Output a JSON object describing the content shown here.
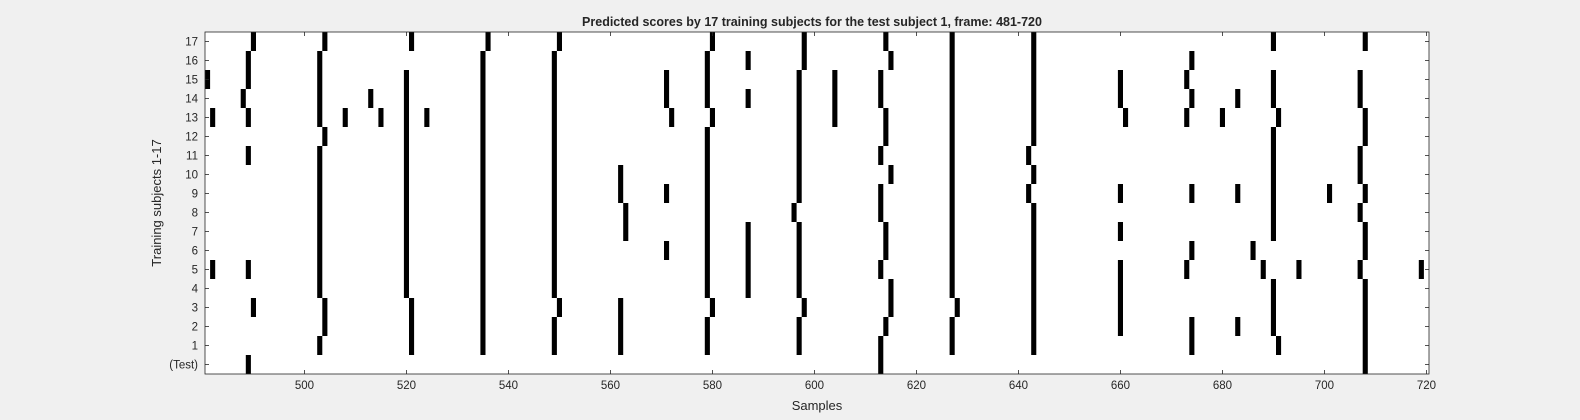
{
  "chart_data": {
    "type": "heatmap",
    "title": "Predicted scores by 17 training subjects for the test subject 1, frame: 481-720",
    "xlabel": "Samples",
    "ylabel": "Training subjects 1-17",
    "xlim": [
      481,
      720
    ],
    "x_ticks": [
      500,
      520,
      540,
      560,
      580,
      600,
      620,
      640,
      660,
      680,
      700,
      720
    ],
    "y_tick_labels": [
      "(Test)",
      "1",
      "2",
      "3",
      "4",
      "5",
      "6",
      "7",
      "8",
      "9",
      "10",
      "11",
      "12",
      "13",
      "14",
      "15",
      "16",
      "17"
    ],
    "grid": false,
    "rows": [
      {
        "label": "17",
        "x": [
          490,
          504,
          521,
          536,
          550,
          580,
          598,
          614,
          627,
          643,
          690,
          708
        ]
      },
      {
        "label": "16",
        "x": [
          489,
          503,
          535,
          549,
          579,
          587,
          598,
          615,
          627,
          643,
          674
        ]
      },
      {
        "label": "15",
        "x": [
          481,
          489,
          503,
          520,
          535,
          549,
          571,
          579,
          597,
          604,
          613,
          627,
          643,
          660,
          673,
          690,
          707
        ]
      },
      {
        "label": "14",
        "x": [
          488,
          503,
          513,
          520,
          535,
          549,
          571,
          579,
          587,
          597,
          604,
          613,
          627,
          643,
          660,
          674,
          683,
          690,
          707
        ]
      },
      {
        "label": "13",
        "x": [
          482,
          489,
          503,
          508,
          515,
          520,
          524,
          535,
          549,
          572,
          580,
          597,
          604,
          614,
          627,
          643,
          661,
          673,
          680,
          691,
          708
        ]
      },
      {
        "label": "12",
        "x": [
          504,
          520,
          535,
          549,
          579,
          597,
          614,
          627,
          643,
          690,
          708
        ]
      },
      {
        "label": "11",
        "x": [
          489,
          503,
          520,
          535,
          549,
          579,
          597,
          613,
          627,
          642,
          690,
          707
        ]
      },
      {
        "label": "10",
        "x": [
          503,
          520,
          535,
          549,
          562,
          579,
          597,
          615,
          627,
          643,
          690,
          707
        ]
      },
      {
        "label": "9",
        "x": [
          503,
          520,
          535,
          549,
          562,
          571,
          579,
          597,
          613,
          627,
          642,
          660,
          674,
          683,
          690,
          701,
          708
        ]
      },
      {
        "label": "8",
        "x": [
          503,
          520,
          535,
          549,
          563,
          579,
          596,
          613,
          627,
          643,
          690,
          707
        ]
      },
      {
        "label": "7",
        "x": [
          503,
          520,
          535,
          549,
          563,
          579,
          587,
          597,
          614,
          627,
          643,
          660,
          690,
          708
        ]
      },
      {
        "label": "6",
        "x": [
          503,
          520,
          535,
          549,
          571,
          579,
          587,
          597,
          614,
          627,
          643,
          674,
          686,
          708
        ]
      },
      {
        "label": "5",
        "x": [
          482,
          489,
          503,
          520,
          535,
          549,
          579,
          587,
          597,
          613,
          627,
          643,
          660,
          673,
          688,
          695,
          707,
          719
        ]
      },
      {
        "label": "4",
        "x": [
          503,
          520,
          535,
          549,
          579,
          587,
          597,
          615,
          627,
          643,
          660,
          690,
          708
        ]
      },
      {
        "label": "3",
        "x": [
          490,
          504,
          521,
          535,
          550,
          562,
          580,
          598,
          615,
          628,
          643,
          660,
          690,
          708
        ]
      },
      {
        "label": "2",
        "x": [
          504,
          521,
          535,
          549,
          562,
          579,
          597,
          614,
          627,
          643,
          660,
          674,
          683,
          690,
          708
        ]
      },
      {
        "label": "1",
        "x": [
          503,
          521,
          535,
          549,
          562,
          579,
          597,
          613,
          627,
          643,
          674,
          691,
          708
        ]
      },
      {
        "label": "(Test)",
        "x": [
          489,
          613,
          708
        ]
      }
    ]
  }
}
